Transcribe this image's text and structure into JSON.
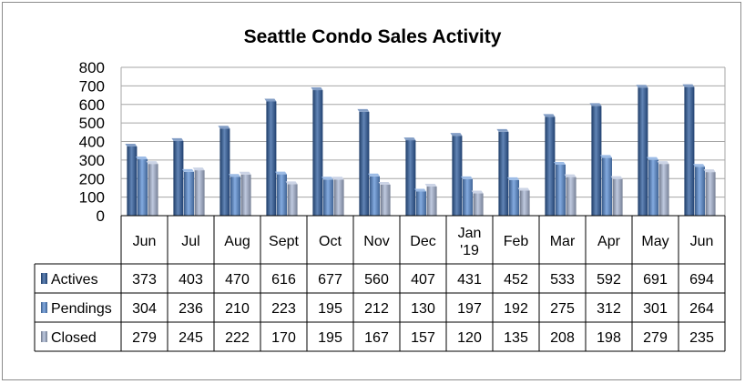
{
  "chart_data": {
    "type": "bar",
    "title": "Seattle Condo Sales Activity",
    "categories": [
      "Jun",
      "Jul",
      "Aug",
      "Sept",
      "Oct",
      "Nov",
      "Dec",
      "Jan '19",
      "Feb",
      "Mar",
      "Apr",
      "May",
      "Jun"
    ],
    "category_lines": [
      [
        "Jun"
      ],
      [
        "Jul"
      ],
      [
        "Aug"
      ],
      [
        "Sept"
      ],
      [
        "Oct"
      ],
      [
        "Nov"
      ],
      [
        "Dec"
      ],
      [
        "Jan",
        "'19"
      ],
      [
        "Feb"
      ],
      [
        "Mar"
      ],
      [
        "Apr"
      ],
      [
        "May"
      ],
      [
        "Jun"
      ]
    ],
    "series": [
      {
        "name": "Actives",
        "color": "#2e5c9e",
        "values": [
          373,
          403,
          470,
          616,
          677,
          560,
          407,
          431,
          452,
          533,
          592,
          691,
          694
        ]
      },
      {
        "name": "Pendings",
        "color": "#5b8fd6",
        "values": [
          304,
          236,
          210,
          223,
          195,
          212,
          130,
          197,
          192,
          275,
          312,
          301,
          264
        ]
      },
      {
        "name": "Closed",
        "color": "#aab8d6",
        "values": [
          279,
          245,
          222,
          170,
          195,
          167,
          157,
          120,
          135,
          208,
          198,
          279,
          235
        ]
      }
    ],
    "ylim": [
      0,
      800
    ],
    "yticks": [
      0,
      100,
      200,
      300,
      400,
      500,
      600,
      700,
      800
    ],
    "grid": true,
    "legend": "data-table"
  }
}
